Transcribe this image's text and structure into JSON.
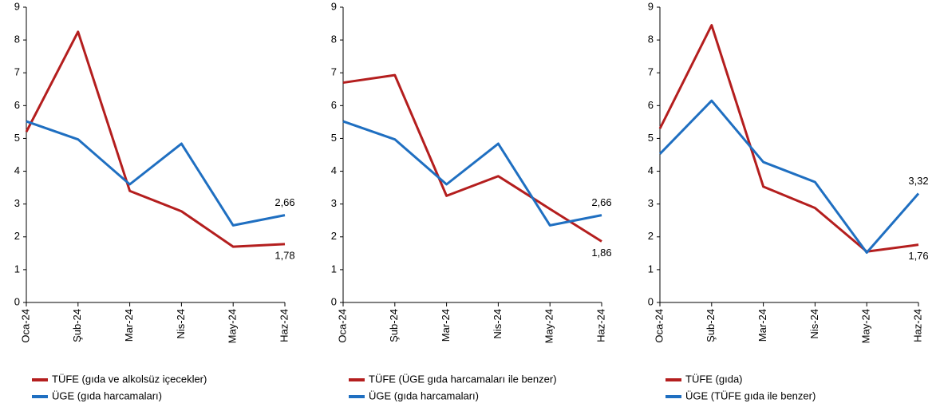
{
  "chart_data": [
    {
      "type": "line",
      "categories": [
        "Oca-24",
        "Şub-24",
        "Mar-24",
        "Nis-24",
        "May-24",
        "Haz-24"
      ],
      "series": [
        {
          "name": "TÜFE (gıda ve alkolsüz içecekler)",
          "color": "#b41e1e",
          "values": [
            5.2,
            8.25,
            3.4,
            2.78,
            1.7,
            1.78
          ],
          "value_labels": [
            null,
            null,
            null,
            null,
            null,
            "1,78"
          ]
        },
        {
          "name": "ÜGE (gıda harcamaları)",
          "color": "#1f6fc1",
          "values": [
            5.52,
            4.97,
            3.6,
            4.84,
            2.35,
            2.66
          ],
          "value_labels": [
            null,
            null,
            null,
            null,
            null,
            "2,66"
          ]
        }
      ],
      "ylim": [
        0,
        9
      ],
      "yticks": [
        0,
        1,
        2,
        3,
        4,
        5,
        6,
        7,
        8,
        9
      ]
    },
    {
      "type": "line",
      "categories": [
        "Oca-24",
        "Şub-24",
        "Mar-24",
        "Nis-24",
        "May-24",
        "Haz-24"
      ],
      "series": [
        {
          "name": "TÜFE (ÜGE gıda harcamaları ile benzer)",
          "color": "#b41e1e",
          "values": [
            6.7,
            6.93,
            3.25,
            3.85,
            2.85,
            1.86
          ],
          "value_labels": [
            null,
            null,
            null,
            null,
            null,
            "1,86"
          ]
        },
        {
          "name": "ÜGE (gıda harcamaları)",
          "color": "#1f6fc1",
          "values": [
            5.52,
            4.97,
            3.6,
            4.84,
            2.35,
            2.66
          ],
          "value_labels": [
            null,
            null,
            null,
            null,
            null,
            "2,66"
          ]
        }
      ],
      "ylim": [
        0,
        9
      ],
      "yticks": [
        0,
        1,
        2,
        3,
        4,
        5,
        6,
        7,
        8,
        9
      ]
    },
    {
      "type": "line",
      "categories": [
        "Oca-24",
        "Şub-24",
        "Mar-24",
        "Nis-24",
        "May-24",
        "Haz-24"
      ],
      "series": [
        {
          "name": "TÜFE (gıda)",
          "color": "#b41e1e",
          "values": [
            5.3,
            8.45,
            3.53,
            2.88,
            1.55,
            1.76
          ],
          "value_labels": [
            null,
            null,
            null,
            null,
            null,
            "1,76"
          ]
        },
        {
          "name": "ÜGE (TÜFE gıda ile benzer)",
          "color": "#1f6fc1",
          "values": [
            4.53,
            6.15,
            4.28,
            3.67,
            1.52,
            3.32
          ],
          "value_labels": [
            null,
            null,
            null,
            null,
            null,
            "3,32"
          ]
        }
      ],
      "ylim": [
        0,
        9
      ],
      "yticks": [
        0,
        1,
        2,
        3,
        4,
        5,
        6,
        7,
        8,
        9
      ]
    }
  ]
}
